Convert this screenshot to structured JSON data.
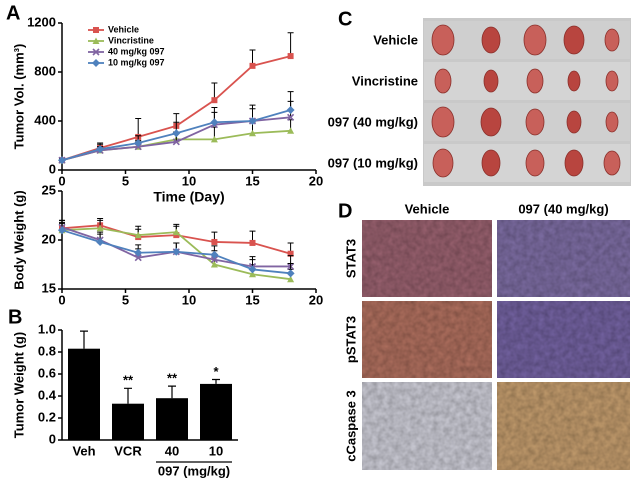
{
  "panels": {
    "a": "A",
    "b": "B",
    "c": "C",
    "d": "D"
  },
  "chart_data": [
    {
      "type": "line",
      "x": [
        0,
        3,
        6,
        9,
        12,
        15,
        18
      ],
      "xlim": [
        0,
        20
      ],
      "xticks": [
        0,
        5,
        10,
        15,
        20
      ],
      "ylim": [
        0,
        1200
      ],
      "yticks": [
        0,
        400,
        800,
        1200
      ],
      "xlabel": "Time (Day)",
      "ylabel": "Tumor Vol. (mm³)",
      "series": [
        {
          "name": "Vehicle",
          "color": "#d9534f",
          "values": [
            80,
            180,
            270,
            360,
            570,
            850,
            930
          ],
          "errors": [
            15,
            40,
            150,
            100,
            140,
            130,
            190
          ]
        },
        {
          "name": "Vincristine",
          "color": "#9bbb59",
          "values": [
            80,
            160,
            190,
            250,
            250,
            300,
            320
          ],
          "errors": [
            10,
            30,
            40,
            60,
            100,
            90,
            90
          ]
        },
        {
          "name": "40 mg/kg 097",
          "color": "#8064a2",
          "values": [
            80,
            160,
            190,
            230,
            370,
            400,
            430
          ],
          "errors": [
            10,
            30,
            50,
            80,
            100,
            100,
            130
          ]
        },
        {
          "name": "10 mg/kg 097",
          "color": "#4f81bd",
          "values": [
            80,
            170,
            220,
            300,
            390,
            400,
            490
          ],
          "errors": [
            10,
            40,
            60,
            90,
            120,
            130,
            150
          ]
        }
      ]
    },
    {
      "type": "line",
      "x": [
        0,
        3,
        6,
        9,
        12,
        15,
        18
      ],
      "xlim": [
        0,
        20
      ],
      "xticks": [
        0,
        5,
        10,
        15,
        20
      ],
      "ylim": [
        15,
        25
      ],
      "yticks": [
        15,
        20,
        25
      ],
      "ylabel": "Body Weight (g)",
      "series": [
        {
          "color": "#d9534f",
          "values": [
            21.2,
            21.5,
            20.3,
            20.5,
            19.8,
            19.7,
            18.6
          ],
          "errors": [
            0.8,
            0.7,
            0.8,
            0.9,
            1.0,
            1.2,
            1.1
          ]
        },
        {
          "color": "#9bbb59",
          "values": [
            21.0,
            21.2,
            20.5,
            20.8,
            17.5,
            16.5,
            16.0
          ],
          "errors": [
            0.7,
            0.8,
            0.9,
            0.8,
            1.0,
            1.0,
            1.0
          ]
        },
        {
          "color": "#8064a2",
          "values": [
            21.3,
            20.0,
            18.2,
            18.8,
            18.0,
            17.3,
            17.3
          ],
          "errors": [
            0.7,
            0.8,
            0.9,
            0.9,
            0.9,
            1.0,
            1.1
          ]
        },
        {
          "color": "#4f81bd",
          "values": [
            21.0,
            19.8,
            18.7,
            18.8,
            18.5,
            17.0,
            16.6
          ],
          "errors": [
            0.8,
            0.8,
            0.8,
            0.9,
            0.9,
            1.0,
            1.0
          ]
        }
      ]
    },
    {
      "type": "bar",
      "categories": [
        "Veh",
        "VCR",
        "40",
        "10"
      ],
      "values": [
        0.83,
        0.33,
        0.38,
        0.51
      ],
      "errors": [
        0.16,
        0.14,
        0.11,
        0.04
      ],
      "annotations": [
        null,
        "**",
        "**",
        "*"
      ],
      "color": "#000000",
      "ylim": [
        0,
        1
      ],
      "yticks": [
        0,
        0.2,
        0.4,
        0.6,
        0.8,
        {
          "value": 1,
          "label": "1.0"
        }
      ],
      "ylabel": "Tumor Weight (g)",
      "group_label": "097 (mg/kg)"
    }
  ],
  "panel_c": {
    "rows": [
      "Vehicle",
      "Vincristine",
      "097 (40 mg/kg)",
      "097 (10 mg/kg)"
    ]
  },
  "panel_d": {
    "columns": [
      "Vehicle",
      "097 (40 mg/kg)"
    ],
    "rows": [
      "STAT3",
      "pSTAT3",
      "cCaspase 3"
    ]
  }
}
